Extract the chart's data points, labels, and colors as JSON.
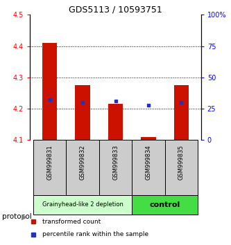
{
  "title": "GDS5113 / 10593751",
  "samples": [
    "GSM999831",
    "GSM999832",
    "GSM999833",
    "GSM999834",
    "GSM999835"
  ],
  "bar_bottom": 4.1,
  "bar_tops": [
    4.41,
    4.275,
    4.215,
    4.11,
    4.275
  ],
  "blue_marker_percentiles": [
    32,
    30,
    31,
    28,
    30
  ],
  "ylim_left": [
    4.1,
    4.5
  ],
  "ylim_right": [
    0,
    100
  ],
  "yticks_left": [
    4.1,
    4.2,
    4.3,
    4.4,
    4.5
  ],
  "yticks_right": [
    0,
    25,
    50,
    75,
    100
  ],
  "ytick_labels_right": [
    "0",
    "25",
    "50",
    "75",
    "100%"
  ],
  "bar_color": "#cc1100",
  "blue_color": "#2233bb",
  "group1_samples": [
    0,
    1,
    2
  ],
  "group2_samples": [
    3,
    4
  ],
  "group1_label": "Grainyhead-like 2 depletion",
  "group2_label": "control",
  "group1_color": "#ccffcc",
  "group2_color": "#44dd44",
  "protocol_label": "protocol",
  "legend_red_label": "transformed count",
  "legend_blue_label": "percentile rank within the sample",
  "bar_width": 0.45,
  "title_fontsize": 9,
  "tick_fontsize": 7,
  "label_fontsize": 6,
  "group_fontsize1": 6,
  "group_fontsize2": 8
}
